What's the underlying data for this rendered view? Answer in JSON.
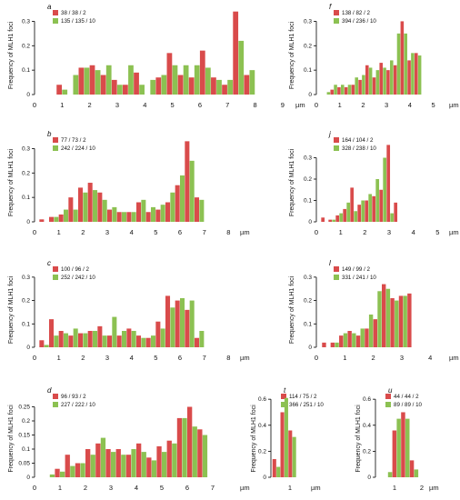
{
  "colors": {
    "red": "#d94b4b",
    "green": "#8cc152"
  },
  "chart_data": [
    {
      "type": "bar",
      "panel_letter": "a",
      "ylabel": "Frequency of MLH1 foci",
      "unit": "µm",
      "legend": [
        "38 / 38 / 2",
        "135 / 135 / 10"
      ],
      "ylim": [
        0,
        0.35
      ],
      "yticks": [
        0,
        0.1,
        0.2,
        0.3
      ],
      "ytick_labels": [
        "0",
        "0.1",
        "0.2",
        "0.3"
      ],
      "xticks": [
        0,
        1,
        2,
        3,
        4,
        5,
        6,
        7,
        8,
        9
      ],
      "xtick_labels": [
        "0",
        "1",
        "2",
        "3",
        "4",
        "5",
        "6",
        "7",
        "8",
        "9"
      ],
      "xlim": [
        0,
        9.4
      ],
      "bin_width": 0.4,
      "bin_start": 0.8,
      "series": [
        {
          "name": "38 / 38 / 2",
          "color": "red",
          "values": [
            0.04,
            0,
            0.11,
            0.12,
            0.08,
            0.06,
            0.04,
            0.09,
            0,
            0.07,
            0.17,
            0.08,
            0.07,
            0.18,
            0.07,
            0.04,
            0.34,
            0.08
          ]
        },
        {
          "name": "135 / 135 / 10",
          "color": "green",
          "values": [
            0.02,
            0.08,
            0.11,
            0.1,
            0.12,
            0.04,
            0.12,
            0.04,
            0.06,
            0.08,
            0.12,
            0.12,
            0.12,
            0.11,
            0.06,
            0.06,
            0.22,
            0.1
          ]
        }
      ]
    },
    {
      "type": "bar",
      "panel_letter": "b",
      "ylabel": "Frequency of MLH1 foci",
      "unit": "µm",
      "legend": [
        "77 / 73 / 2",
        "242 / 224 / 10"
      ],
      "ylim": [
        0,
        0.35
      ],
      "yticks": [
        0,
        0.1,
        0.2,
        0.3
      ],
      "ytick_labels": [
        "0",
        "0.1",
        "0.2",
        "0.3"
      ],
      "xticks": [
        0,
        1,
        2,
        3,
        4,
        5,
        6,
        7,
        8
      ],
      "xtick_labels": [
        "0",
        "1",
        "2",
        "3",
        "4",
        "5",
        "6",
        "7",
        "8"
      ],
      "xlim": [
        0,
        8.4
      ],
      "bin_width": 0.4,
      "bin_start": 0.2,
      "series": [
        {
          "name": "77 / 73 / 2",
          "color": "red",
          "values": [
            0.01,
            0.02,
            0.03,
            0.1,
            0.14,
            0.16,
            0.12,
            0.05,
            0.04,
            0.04,
            0.08,
            0.04,
            0.05,
            0.08,
            0.15,
            0.33,
            0.1
          ]
        },
        {
          "name": "242 / 224 / 10",
          "color": "green",
          "values": [
            0,
            0.02,
            0.05,
            0.05,
            0.12,
            0.13,
            0.09,
            0.06,
            0.04,
            0.04,
            0.09,
            0.06,
            0.07,
            0.12,
            0.19,
            0.25,
            0.09
          ]
        }
      ]
    },
    {
      "type": "bar",
      "panel_letter": "c",
      "ylabel": "Frequency of MLH1 foci",
      "unit": "µm",
      "legend": [
        "100 / 96 / 2",
        "252 / 242 / 10"
      ],
      "ylim": [
        0,
        0.35
      ],
      "yticks": [
        0,
        0.1,
        0.2,
        0.3
      ],
      "ytick_labels": [
        "0",
        "0.1",
        "0.2",
        "0.3"
      ],
      "xticks": [
        0,
        1,
        2,
        3,
        4,
        5,
        6,
        7,
        8
      ],
      "xtick_labels": [
        "0",
        "1",
        "2",
        "3",
        "4",
        "5",
        "6",
        "7",
        "8"
      ],
      "xlim": [
        0,
        8.4
      ],
      "bin_width": 0.4,
      "bin_start": 0.2,
      "series": [
        {
          "name": "100 / 96 / 2",
          "color": "red",
          "values": [
            0.03,
            0.12,
            0.07,
            0.05,
            0.06,
            0.07,
            0.09,
            0.05,
            0.05,
            0.08,
            0.05,
            0.04,
            0.11,
            0.22,
            0.2,
            0.16,
            0.04
          ]
        },
        {
          "name": "252 / 242 / 10",
          "color": "green",
          "values": [
            0.01,
            0.05,
            0.06,
            0.08,
            0.06,
            0.07,
            0.05,
            0.13,
            0.07,
            0.07,
            0.04,
            0.05,
            0.08,
            0.17,
            0.21,
            0.2,
            0.07
          ]
        }
      ]
    },
    {
      "type": "bar",
      "panel_letter": "d",
      "ylabel": "Frequency of MLH1 foci",
      "unit": "µm",
      "legend": [
        "96 / 93 / 2",
        "227 / 222 / 10"
      ],
      "ylim": [
        0,
        0.3
      ],
      "yticks": [
        0,
        0.05,
        0.1,
        0.15,
        0.2,
        0.25
      ],
      "ytick_labels": [
        "0",
        "0.05",
        "0.1",
        "0.15",
        "0.2",
        "0.25"
      ],
      "xticks": [
        0,
        1,
        2,
        3,
        4,
        5,
        6,
        7
      ],
      "xtick_labels": [
        "0",
        "1",
        "2",
        "3",
        "4",
        "5",
        "6",
        "7"
      ],
      "xlim": [
        0,
        8.0
      ],
      "bin_width": 0.4,
      "bin_start": 0.4,
      "series": [
        {
          "name": "96 / 93 / 2",
          "color": "red",
          "values": [
            0,
            0.03,
            0.08,
            0.05,
            0.1,
            0.12,
            0.1,
            0.1,
            0.08,
            0.12,
            0.07,
            0.11,
            0.13,
            0.21,
            0.25,
            0.17
          ]
        },
        {
          "name": "227 / 222 / 10",
          "color": "green",
          "values": [
            0.01,
            0.02,
            0.04,
            0.05,
            0.08,
            0.14,
            0.09,
            0.08,
            0.1,
            0.09,
            0.06,
            0.09,
            0.12,
            0.21,
            0.18,
            0.15
          ]
        }
      ]
    },
    {
      "type": "bar",
      "panel_letter": "f",
      "ylabel": "Frequency of MLH1 foci",
      "unit": "µm",
      "legend": [
        "138 / 82 / 2",
        "394 / 236 / 10"
      ],
      "ylim": [
        0,
        0.35
      ],
      "yticks": [
        0,
        0.1,
        0.2,
        0.3
      ],
      "ytick_labels": [
        "0",
        "0.1",
        "0.2",
        "0.3"
      ],
      "xticks": [
        0,
        1,
        2,
        3,
        4,
        5
      ],
      "xtick_labels": [
        "0",
        "1",
        "2",
        "3",
        "4",
        "5"
      ],
      "xlim": [
        0,
        5.6
      ],
      "bin_width": 0.3,
      "bin_start": 0.3,
      "series": [
        {
          "name": "138 / 82 / 2",
          "color": "red",
          "values": [
            0,
            0.02,
            0.03,
            0.03,
            0.04,
            0.06,
            0.12,
            0.07,
            0.13,
            0.1,
            0.12,
            0.3,
            0.14,
            0.17
          ]
        },
        {
          "name": "394 / 236 / 10",
          "color": "green",
          "values": [
            0.01,
            0.04,
            0.04,
            0.04,
            0.07,
            0.08,
            0.11,
            0.1,
            0.11,
            0.14,
            0.25,
            0.25,
            0.17,
            0.16
          ]
        }
      ]
    },
    {
      "type": "bar",
      "panel_letter": "j",
      "ylabel": "Frequency of MLH1 foci",
      "unit": "µm",
      "legend": [
        "164 / 104 / 2",
        "328 / 238 / 10"
      ],
      "ylim": [
        0,
        0.4
      ],
      "yticks": [
        0,
        0.1,
        0.2,
        0.3
      ],
      "ytick_labels": [
        "0",
        "0.1",
        "0.2",
        "0.3"
      ],
      "xticks": [
        0,
        1,
        2,
        3,
        4,
        5
      ],
      "xtick_labels": [
        "0",
        "1",
        "2",
        "3",
        "4",
        "5"
      ],
      "xlim": [
        0,
        5.4
      ],
      "bin_width": 0.3,
      "bin_start": 0.2,
      "series": [
        {
          "name": "164 / 104 / 2",
          "color": "red",
          "values": [
            0.02,
            0.01,
            0.03,
            0.06,
            0.16,
            0.08,
            0.1,
            0.12,
            0.15,
            0.36,
            0.09
          ]
        },
        {
          "name": "328 / 238 / 10",
          "color": "green",
          "values": [
            0,
            0.01,
            0.04,
            0.09,
            0.05,
            0.1,
            0.13,
            0.2,
            0.3,
            0.04,
            0
          ]
        }
      ]
    },
    {
      "type": "bar",
      "panel_letter": "l",
      "ylabel": "Frequency of MLH1 foci",
      "unit": "µm",
      "legend": [
        "149 / 99 / 2",
        "331 / 241 / 10"
      ],
      "ylim": [
        0,
        0.35
      ],
      "yticks": [
        0,
        0.1,
        0.2,
        0.3
      ],
      "ytick_labels": [
        "0",
        "0.1",
        "0.2",
        "0.3"
      ],
      "xticks": [
        0,
        1,
        2,
        3,
        4
      ],
      "xtick_labels": [
        "0",
        "1",
        "2",
        "3",
        "4"
      ],
      "xlim": [
        0,
        4.6
      ],
      "bin_width": 0.3,
      "bin_start": 0.2,
      "series": [
        {
          "name": "149 / 99 / 2",
          "color": "red",
          "values": [
            0.02,
            0.02,
            0.05,
            0.07,
            0.05,
            0.08,
            0.12,
            0.27,
            0.21,
            0.22,
            0.23
          ]
        },
        {
          "name": "331 / 241 / 10",
          "color": "green",
          "values": [
            0,
            0.02,
            0.06,
            0.06,
            0.08,
            0.14,
            0.24,
            0.25,
            0.2,
            0.22,
            0
          ]
        }
      ]
    },
    {
      "type": "bar",
      "panel_letter": "t",
      "ylabel": "Frequency of MLH1 foci",
      "unit": "µm",
      "legend": [
        "114 / 75 / 2",
        "366 / 251 / 10"
      ],
      "ylim": [
        0,
        0.65
      ],
      "yticks": [
        0,
        0.2,
        0.4,
        0.6
      ],
      "ytick_labels": [
        "0",
        "0.2",
        "0.4",
        "0.6"
      ],
      "xticks": [
        1
      ],
      "xtick_labels": [
        "1"
      ],
      "xlim": [
        0.4,
        1.6
      ],
      "bin_width": 0.25,
      "bin_start": 0.45,
      "series": [
        {
          "name": "114 / 75 / 2",
          "color": "red",
          "values": [
            0.14,
            0.5,
            0.36,
            0
          ]
        },
        {
          "name": "366 / 251 / 10",
          "color": "green",
          "values": [
            0.08,
            0.61,
            0.31,
            0
          ]
        }
      ]
    },
    {
      "type": "bar",
      "panel_letter": "u",
      "ylabel": "Frequency of MLH1 foci",
      "unit": "µm",
      "legend": [
        "44 / 44 / 2",
        "89 / 89 / 10"
      ],
      "ylim": [
        0,
        0.65
      ],
      "yticks": [
        0,
        0.2,
        0.4,
        0.6
      ],
      "ytick_labels": [
        "0",
        "0.2",
        "0.4",
        "0.6"
      ],
      "xticks": [
        1,
        2
      ],
      "xtick_labels": [
        "1",
        "2"
      ],
      "xlim": [
        0.3,
        2.2
      ],
      "bin_width": 0.32,
      "bin_start": 0.6,
      "series": [
        {
          "name": "44 / 44 / 2",
          "color": "red",
          "values": [
            0,
            0.36,
            0.5,
            0.13
          ]
        },
        {
          "name": "89 / 89 / 10",
          "color": "green",
          "values": [
            0.04,
            0.45,
            0.45,
            0.06
          ]
        }
      ]
    }
  ]
}
